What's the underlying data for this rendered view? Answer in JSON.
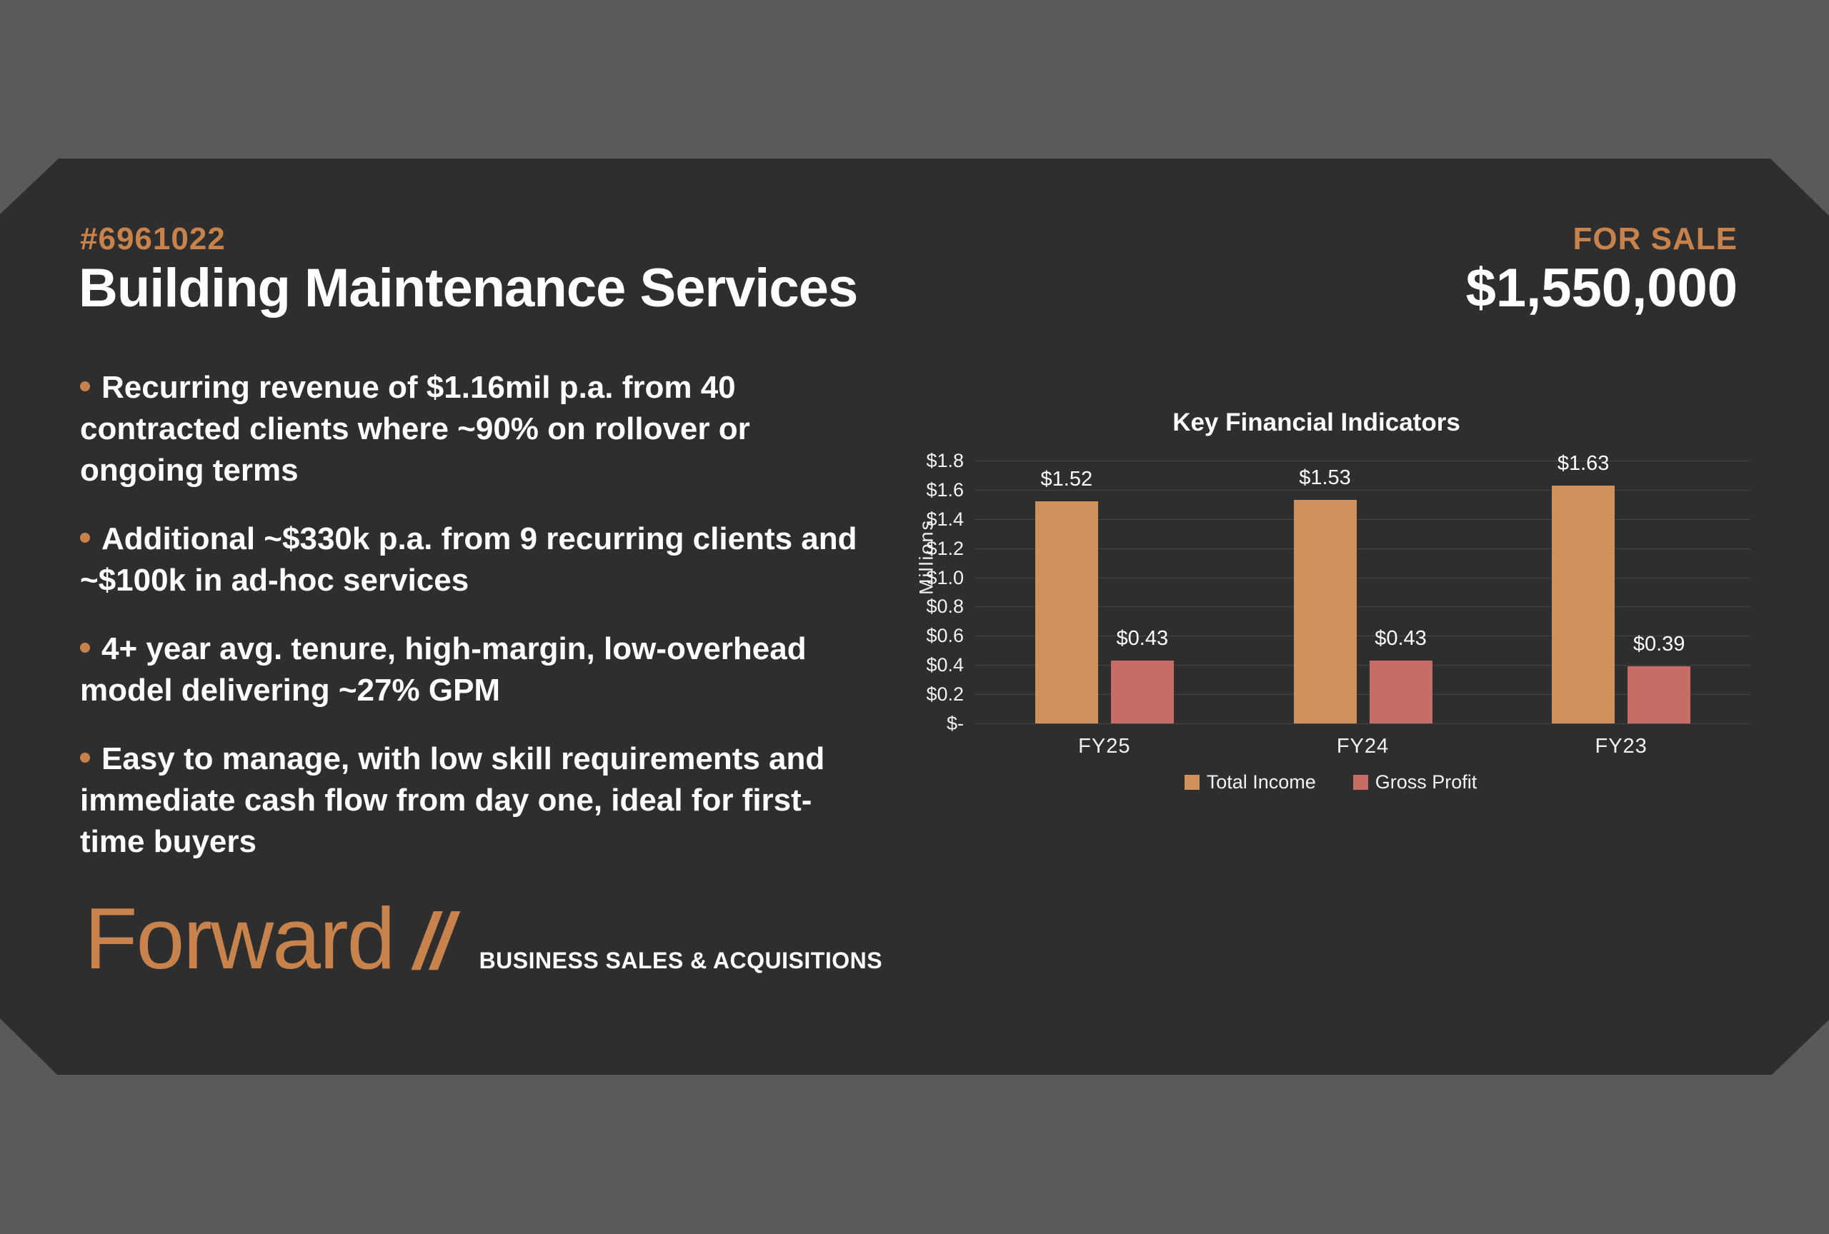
{
  "header": {
    "listing_id": "#6961022",
    "business_title": "Building Maintenance Services",
    "sale_label": "FOR SALE",
    "price": "$1,550,000"
  },
  "bullets": [
    "Recurring revenue of $1.16mil p.a. from 40 contracted clients where ~90% on rollover or ongoing terms",
    "Additional ~$330k p.a. from 9 recurring clients and ~$100k in ad-hoc services",
    "4+ year avg. tenure, high-margin, low-overhead model delivering ~27% GPM",
    "Easy to manage, with low skill requirements and immediate cash flow from day one, ideal for first-time buyers"
  ],
  "logo": {
    "brand": "Forward",
    "slashes": "//",
    "tagline": "BUSINESS SALES & ACQUISITIONS"
  },
  "colors": {
    "outer_background": "#5a5a5a",
    "card_background": "#2f2e2e",
    "accent_orange": "#c8834c",
    "total_income_bar": "#d0925d",
    "gross_profit_bar": "#c66e65",
    "gridline": "#474747",
    "text_white": "#fdfdfd"
  },
  "chart_data": {
    "type": "bar",
    "title": "Key Financial Indicators",
    "ylabel": "Millions",
    "xlabel": "",
    "categories": [
      "FY25",
      "FY24",
      "FY23"
    ],
    "series": [
      {
        "name": "Total Income",
        "color": "#d0925d",
        "values": [
          1.52,
          1.53,
          1.63
        ],
        "data_labels": [
          "$1.52",
          "$1.53",
          "$1.63"
        ]
      },
      {
        "name": "Gross Profit",
        "color": "#c66e65",
        "values": [
          0.43,
          0.43,
          0.39
        ],
        "data_labels": [
          "$0.43",
          "$0.43",
          "$0.39"
        ]
      }
    ],
    "ylim": [
      0,
      1.8
    ],
    "ytick_step": 0.2,
    "ytick_labels": [
      "$1.8",
      "$1.6",
      "$1.4",
      "$1.2",
      "$1.0",
      "$0.8",
      "$0.6",
      "$0.4",
      "$0.2",
      "$-"
    ],
    "grid": true,
    "legend_position": "bottom"
  }
}
